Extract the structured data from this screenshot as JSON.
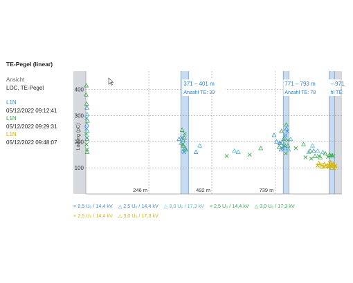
{
  "panel": {
    "title": "TE-Pegel (linear)",
    "view_label": "Ansicht",
    "view_value": "LOC, TE-Pegel"
  },
  "measurements": [
    {
      "phase": "L1N",
      "color": "#3a8fd8",
      "timestamp": "05/12/2022 09:12:41"
    },
    {
      "phase": "L1N",
      "color": "#3aa84a",
      "timestamp": "05/12/2022 09:29:31"
    },
    {
      "phase": "L1N",
      "color": "#d2b400",
      "timestamp": "05/12/2022 09:48:07"
    }
  ],
  "chart_data": {
    "type": "scatter",
    "ylabel": "Ladung (pC)",
    "yticks": [
      100,
      200,
      300,
      400
    ],
    "ylim": [
      0,
      470
    ],
    "x_unit": "m",
    "xlim": [
      0,
      1000
    ],
    "x_markers": [
      {
        "label": "246 m",
        "x": 246
      },
      {
        "label": "492 m",
        "x": 492
      },
      {
        "label": "739 m",
        "x": 739
      }
    ],
    "grid": true,
    "highlight_bands": [
      {
        "range": [
          371,
          401
        ],
        "label": "371 – 401 m",
        "count_label": "Anzahl TE: 39"
      },
      {
        "range": [
          771,
          793
        ],
        "label": "771 – 793 m",
        "count_label": "Anzahl TE: 78"
      },
      {
        "range": [
          950,
          971
        ],
        "label": "– 971",
        "count_label": "hl TE:"
      }
    ],
    "series": [
      {
        "name": "2,5 U₀ / 14,4 kV",
        "marker": "x",
        "color": "#3a8fd8",
        "points": [
          [
            3,
            290
          ],
          [
            3,
            250
          ],
          [
            5,
            215
          ],
          [
            375,
            215
          ],
          [
            384,
            160
          ],
          [
            760,
            195
          ],
          [
            768,
            175
          ],
          [
            780,
            225
          ],
          [
            786,
            240
          ]
        ]
      },
      {
        "name": "2,5 U₀ / 14,4 kV",
        "marker": "triangle",
        "color": "#3a8fd8",
        "points": [
          [
            4,
            330
          ],
          [
            4,
            265
          ],
          [
            364,
            210
          ],
          [
            380,
            205
          ],
          [
            388,
            175
          ],
          [
            430,
            160
          ],
          [
            735,
            225
          ],
          [
            745,
            200
          ],
          [
            758,
            195
          ],
          [
            762,
            170
          ],
          [
            776,
            215
          ],
          [
            779,
            175
          ],
          [
            783,
            250
          ],
          [
            890,
            165
          ]
        ]
      },
      {
        "name": "3,0 U₀ / 17,3 kV",
        "marker": "triangle",
        "color": "#4fb7d8",
        "points": [
          [
            5,
            305
          ],
          [
            6,
            240
          ],
          [
            372,
            195
          ],
          [
            379,
            165
          ],
          [
            445,
            185
          ],
          [
            580,
            165
          ],
          [
            595,
            160
          ],
          [
            775,
            190
          ],
          [
            792,
            170
          ],
          [
            800,
            210
          ],
          [
            870,
            160
          ],
          [
            885,
            185
          ],
          [
            905,
            165
          ],
          [
            925,
            160
          ]
        ]
      },
      {
        "name": "2,5 U₀ / 14,4 kV",
        "marker": "x",
        "color": "#3aa84a",
        "points": [
          [
            2,
            230
          ],
          [
            3,
            190
          ],
          [
            5,
            170
          ],
          [
            378,
            190
          ],
          [
            386,
            230
          ],
          [
            550,
            145
          ],
          [
            640,
            150
          ],
          [
            774,
            185
          ],
          [
            781,
            155
          ],
          [
            789,
            205
          ],
          [
            820,
            175
          ],
          [
            858,
            140
          ],
          [
            880,
            135
          ],
          [
            910,
            145
          ],
          [
            946,
            142
          ],
          [
            958,
            148
          ],
          [
            966,
            146
          ]
        ]
      },
      {
        "name": "3,0 U₀ / 17,3 kV",
        "marker": "triangle",
        "color": "#3aa84a",
        "points": [
          [
            1,
            380
          ],
          [
            2,
            415
          ],
          [
            3,
            345
          ],
          [
            4,
            210
          ],
          [
            5,
            160
          ],
          [
            6,
            280
          ],
          [
            376,
            245
          ],
          [
            381,
            185
          ],
          [
            385,
            215
          ],
          [
            390,
            170
          ],
          [
            683,
            175
          ],
          [
            755,
            180
          ],
          [
            764,
            240
          ],
          [
            772,
            210
          ],
          [
            783,
            265
          ],
          [
            789,
            185
          ],
          [
            850,
            190
          ],
          [
            876,
            165
          ],
          [
            895,
            145
          ],
          [
            915,
            140
          ],
          [
            935,
            155
          ],
          [
            952,
            150
          ],
          [
            962,
            147
          ]
        ]
      },
      {
        "name": "2,5 U₀ / 14,4 kV",
        "marker": "x",
        "color": "#d2b400",
        "points": [
          [
            905,
            108
          ],
          [
            918,
            112
          ],
          [
            928,
            104
          ],
          [
            938,
            110
          ],
          [
            948,
            102
          ],
          [
            952,
            118
          ],
          [
            958,
            106
          ],
          [
            963,
            112
          ],
          [
            969,
            98
          ],
          [
            975,
            108
          ]
        ]
      },
      {
        "name": "3,0 U₀ / 17,3 kV",
        "marker": "triangle",
        "color": "#d2b400",
        "points": [
          [
            910,
            118
          ],
          [
            922,
            104
          ],
          [
            932,
            114
          ],
          [
            944,
            108
          ],
          [
            950,
            110
          ],
          [
            956,
            120
          ],
          [
            961,
            100
          ],
          [
            966,
            115
          ],
          [
            972,
            106
          ]
        ]
      }
    ]
  }
}
